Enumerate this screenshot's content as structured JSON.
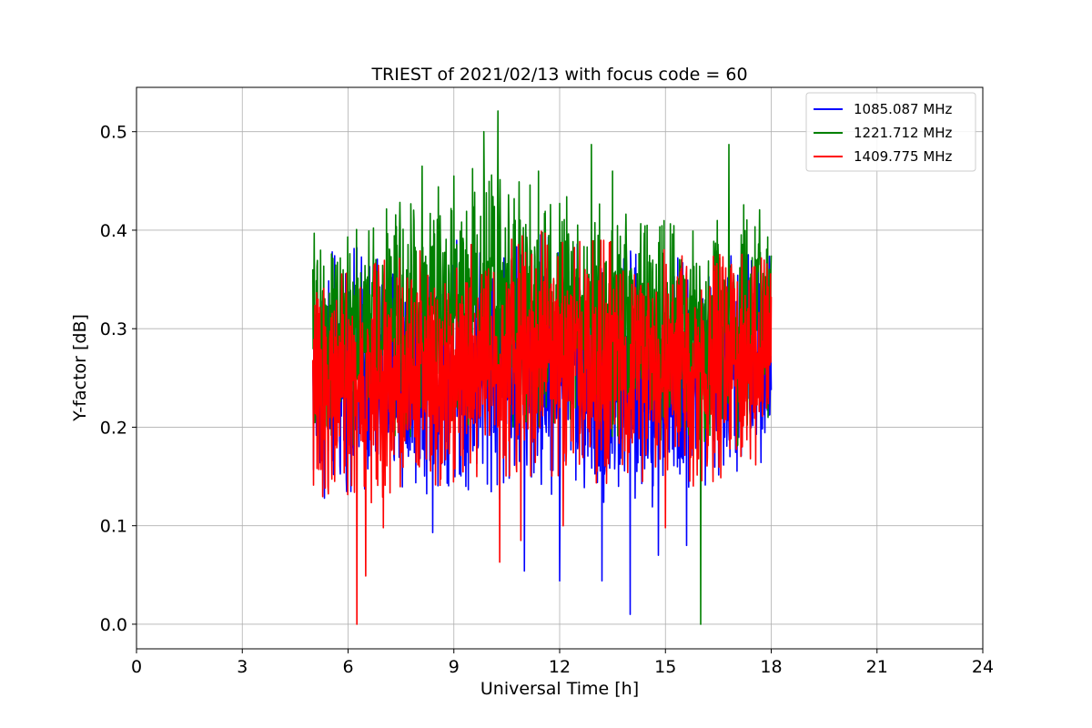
{
  "chart_data": {
    "type": "line",
    "title": "TRIEST of 2021/02/13 with focus code = 60",
    "xlabel": "Universal Time [h]",
    "ylabel": "Y-factor [dB]",
    "xlim": [
      0,
      24
    ],
    "ylim": [
      -0.025,
      0.545
    ],
    "xticks": [
      0,
      3,
      6,
      9,
      12,
      15,
      18,
      21,
      24
    ],
    "xtick_labels": [
      "0",
      "3",
      "6",
      "9",
      "12",
      "15",
      "18",
      "21",
      "24"
    ],
    "yticks": [
      0.0,
      0.1,
      0.2,
      0.3,
      0.4,
      0.5
    ],
    "ytick_labels": [
      "0.0",
      "0.1",
      "0.2",
      "0.3",
      "0.4",
      "0.5"
    ],
    "grid": true,
    "legend_position": "top-right",
    "time_range": [
      5.0,
      18.0
    ],
    "series": [
      {
        "name": "1085.087 MHz",
        "color": "#0000ff",
        "envelope_x": [
          5,
          6,
          7,
          8,
          9,
          10,
          11,
          12,
          13,
          14,
          15,
          16,
          17,
          18
        ],
        "envelope_low": [
          0.125,
          0.13,
          0.12,
          0.13,
          0.14,
          0.13,
          0.12,
          0.13,
          0.12,
          0.11,
          0.12,
          0.13,
          0.14,
          0.17
        ],
        "envelope_high": [
          0.37,
          0.385,
          0.38,
          0.38,
          0.39,
          0.4,
          0.4,
          0.39,
          0.385,
          0.38,
          0.38,
          0.37,
          0.39,
          0.38
        ],
        "spikes_low": [
          {
            "x": 8.4,
            "y": 0.093
          },
          {
            "x": 11.0,
            "y": 0.054
          },
          {
            "x": 12.0,
            "y": 0.044
          },
          {
            "x": 13.2,
            "y": 0.044
          },
          {
            "x": 14.0,
            "y": 0.01
          },
          {
            "x": 14.8,
            "y": 0.07
          },
          {
            "x": 15.6,
            "y": 0.08
          }
        ]
      },
      {
        "name": "1221.712 MHz",
        "color": "#008000",
        "envelope_x": [
          5,
          6,
          7,
          8,
          9,
          10,
          11,
          12,
          13,
          14,
          15,
          16,
          17,
          18
        ],
        "envelope_low": [
          0.17,
          0.18,
          0.19,
          0.19,
          0.2,
          0.2,
          0.2,
          0.2,
          0.19,
          0.19,
          0.18,
          0.18,
          0.18,
          0.2
        ],
        "envelope_high": [
          0.4,
          0.41,
          0.42,
          0.44,
          0.455,
          0.47,
          0.45,
          0.44,
          0.44,
          0.43,
          0.41,
          0.4,
          0.43,
          0.42
        ],
        "spikes_high": [
          {
            "x": 8.1,
            "y": 0.465
          },
          {
            "x": 9.0,
            "y": 0.455
          },
          {
            "x": 9.85,
            "y": 0.5
          },
          {
            "x": 10.25,
            "y": 0.521
          },
          {
            "x": 11.4,
            "y": 0.46
          },
          {
            "x": 12.9,
            "y": 0.487
          },
          {
            "x": 13.5,
            "y": 0.46
          },
          {
            "x": 16.8,
            "y": 0.487
          }
        ],
        "spikes_low": [
          {
            "x": 16.0,
            "y": 0.0
          }
        ]
      },
      {
        "name": "1409.775 MHz",
        "color": "#ff0000",
        "envelope_x": [
          5,
          6,
          7,
          8,
          9,
          10,
          11,
          12,
          13,
          14,
          15,
          16,
          17,
          18
        ],
        "envelope_low": [
          0.13,
          0.12,
          0.12,
          0.14,
          0.14,
          0.15,
          0.15,
          0.15,
          0.14,
          0.14,
          0.13,
          0.14,
          0.15,
          0.17
        ],
        "envelope_high": [
          0.35,
          0.36,
          0.37,
          0.38,
          0.385,
          0.39,
          0.4,
          0.4,
          0.39,
          0.39,
          0.38,
          0.37,
          0.38,
          0.37
        ],
        "spikes_low": [
          {
            "x": 6.25,
            "y": 0.0
          },
          {
            "x": 6.5,
            "y": 0.049
          },
          {
            "x": 7.0,
            "y": 0.098
          },
          {
            "x": 10.3,
            "y": 0.063
          },
          {
            "x": 10.9,
            "y": 0.085
          },
          {
            "x": 12.1,
            "y": 0.1
          },
          {
            "x": 15.0,
            "y": 0.098
          }
        ]
      }
    ]
  }
}
